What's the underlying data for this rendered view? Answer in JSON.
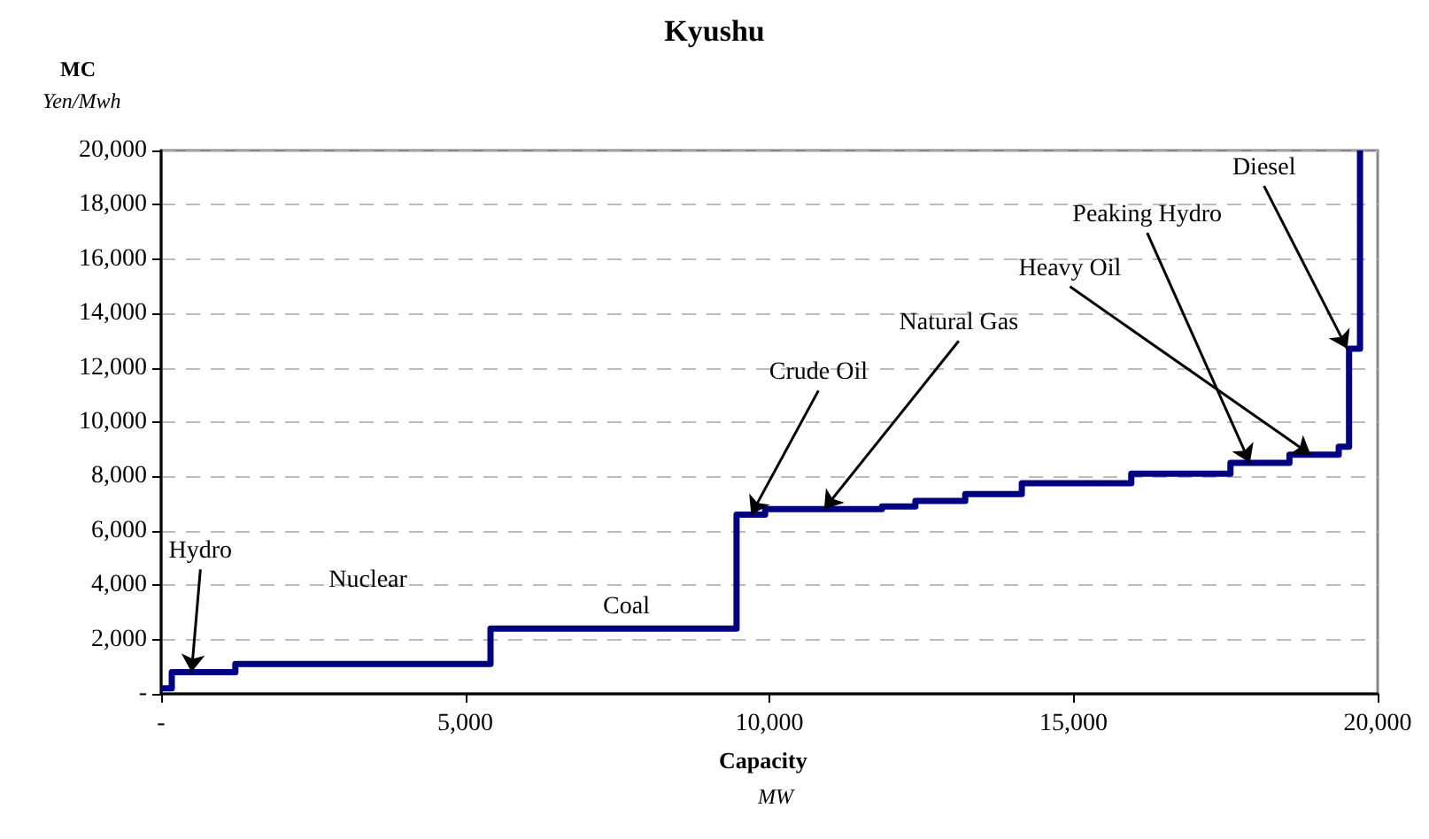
{
  "chart_data": {
    "type": "step",
    "title": "Kyushu",
    "xlabel": "Capacity\nMW",
    "ylabel": "MC\nYen/Mwh",
    "x": [
      0,
      175,
      1220,
      5415,
      9460,
      9930,
      11850,
      12400,
      13220,
      14150,
      15950,
      17580,
      18550,
      19360,
      19530,
      19710
    ],
    "series": [
      {
        "color": "#000080",
        "values": [
          200,
          800,
          1100,
          2400,
          6600,
          6800,
          6900,
          7100,
          7350,
          7750,
          8100,
          8500,
          8800,
          9100,
          12700,
          20000
        ]
      }
    ],
    "xlim": [
      0,
      20000
    ],
    "ylim": [
      0,
      20000
    ],
    "xticks": [
      {
        "value": 0,
        "label": "-"
      },
      {
        "value": 5000,
        "label": "5,000"
      },
      {
        "value": 10000,
        "label": "10,000"
      },
      {
        "value": 15000,
        "label": "15,000"
      },
      {
        "value": 20000,
        "label": "20,000"
      }
    ],
    "yticks": [
      {
        "value": 0,
        "label": "-"
      },
      {
        "value": 2000,
        "label": "2,000"
      },
      {
        "value": 4000,
        "label": "4,000"
      },
      {
        "value": 6000,
        "label": "6,000"
      },
      {
        "value": 8000,
        "label": "8,000"
      },
      {
        "value": 10000,
        "label": "10,000"
      },
      {
        "value": 12000,
        "label": "12,000"
      },
      {
        "value": 14000,
        "label": "14,000"
      },
      {
        "value": 16000,
        "label": "16,000"
      },
      {
        "value": 18000,
        "label": "18,000"
      },
      {
        "value": 20000,
        "label": "20,000"
      }
    ],
    "grid": "y",
    "marker": "none",
    "line_style": "solid",
    "annotations": [
      {
        "text": "Hydro",
        "x": 500,
        "y": 800
      },
      {
        "text": "Nuclear",
        "x": 3400,
        "y": 1100
      },
      {
        "text": "Coal",
        "x": 7650,
        "y": 2400
      },
      {
        "text": "Crude Oil",
        "x": 9700,
        "y": 6600
      },
      {
        "text": "Natural Gas",
        "x": 10900,
        "y": 6800
      },
      {
        "text": "Heavy Oil",
        "x": 18900,
        "y": 8800
      },
      {
        "text": "Peaking Hydro",
        "x": 17900,
        "y": 8500
      },
      {
        "text": "Diesel",
        "x": 19500,
        "y": 12700
      }
    ]
  }
}
